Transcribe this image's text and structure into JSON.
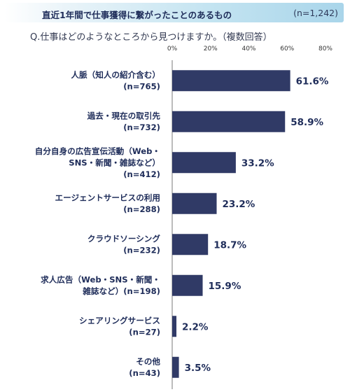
{
  "header": {
    "title": "直近1年間で仕事獲得に繋がったことのあるもの",
    "sample": "(n=1,242)"
  },
  "question": "Q.仕事はどのようなところから見つけますか。（複数回答）",
  "colors": {
    "bar": "#303a66",
    "axis": "#7a7a7a",
    "banner": "#b5dbee"
  },
  "chart_data": {
    "type": "bar",
    "orientation": "horizontal",
    "xlim": [
      0,
      80
    ],
    "ticks": [
      "0%",
      "20%",
      "40%",
      "60%",
      "80%"
    ],
    "tick_values": [
      0,
      20,
      40,
      60,
      80
    ],
    "categories": [
      {
        "lines": [
          "人脈（知人の紹介含む）",
          "(n=765)"
        ],
        "value": 61.6,
        "label": "61.6%"
      },
      {
        "lines": [
          "過去・現在の取引先",
          "(n=732)"
        ],
        "value": 58.9,
        "label": "58.9%"
      },
      {
        "lines": [
          "自分自身の広告宣伝活動（Web・",
          "SNS・新聞・雑誌など）",
          "(n=412)"
        ],
        "value": 33.2,
        "label": "33.2%"
      },
      {
        "lines": [
          "エージェントサービスの利用",
          "(n=288)"
        ],
        "value": 23.2,
        "label": "23.2%"
      },
      {
        "lines": [
          "クラウドソーシング",
          "(n=232)"
        ],
        "value": 18.7,
        "label": "18.7%"
      },
      {
        "lines": [
          "求人広告（Web・SNS・新聞・",
          "雑誌など）(n=198)"
        ],
        "value": 15.9,
        "label": "15.9%"
      },
      {
        "lines": [
          "シェアリングサービス",
          "(n=27)"
        ],
        "value": 2.2,
        "label": "2.2%"
      },
      {
        "lines": [
          "その他",
          "(n=43)"
        ],
        "value": 3.5,
        "label": "3.5%"
      }
    ]
  }
}
